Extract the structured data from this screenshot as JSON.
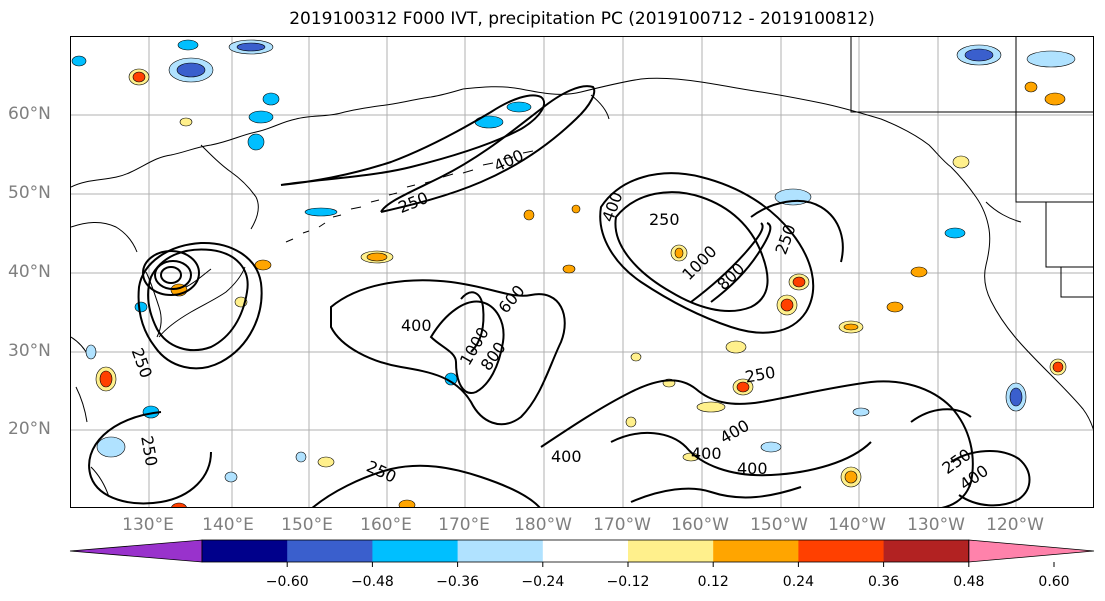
{
  "title": "2019100312 F000 IVT, precipitation PC (2019100712 - 2019100812)",
  "map": {
    "lat_labels": [
      "60°N",
      "50°N",
      "40°N",
      "30°N",
      "20°N"
    ],
    "lon_labels": [
      "130°E",
      "140°E",
      "150°E",
      "160°E",
      "170°E",
      "180°W",
      "170°W",
      "160°W",
      "150°W",
      "140°W",
      "130°W",
      "120°W"
    ],
    "contour_line_color": "#000000",
    "coastline_color": "#000000",
    "gridline_color": "#b0b0b0"
  },
  "contour_labels": [
    "250",
    "400",
    "250",
    "400",
    "250",
    "400",
    "1000",
    "800",
    "400",
    "1000",
    "800",
    "250",
    "250",
    "400",
    "400",
    "400",
    "250",
    "400",
    "250",
    "250",
    "600"
  ],
  "colorbar": {
    "colors": [
      "#9932cc",
      "#00008b",
      "#3a5fcd",
      "#00bfff",
      "#b0e2ff",
      "#ffffff",
      "#fff08c",
      "#ffa500",
      "#ff4000",
      "#b22222",
      "#ff82ab"
    ],
    "ticks": [
      "−0.60",
      "−0.48",
      "−0.36",
      "−0.24",
      "−0.12",
      "0.12",
      "0.24",
      "0.36",
      "0.48",
      "0.60"
    ]
  }
}
